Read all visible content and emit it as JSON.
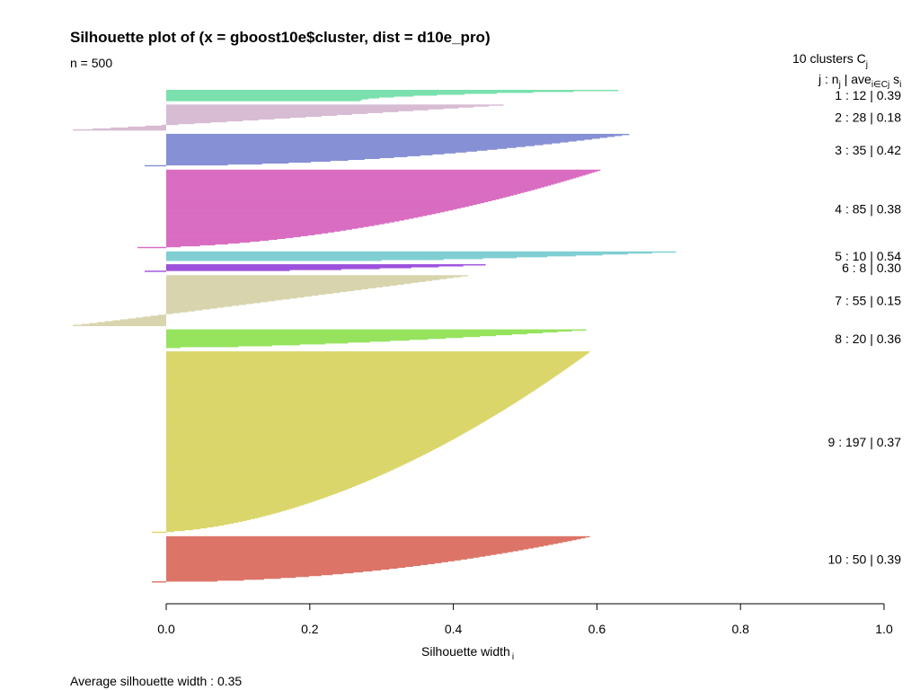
{
  "chart_data": {
    "type": "silhouette",
    "title": "Silhouette plot of (x = gboost10e$cluster, dist = d10e_pro)",
    "subtitle": "n = 500",
    "xlabel": "Silhouette width",
    "xlabel_sub": "i",
    "xlim": [
      0,
      1
    ],
    "x_ticks": [
      0,
      0.2,
      0.4,
      0.6,
      0.8,
      1
    ],
    "x_tick_labels": [
      "0.0",
      "0.2",
      "0.4",
      "0.6",
      "0.8",
      "1.0"
    ],
    "legend_header": {
      "count_label": "10  clusters  C",
      "count_sub": "j",
      "columns_label": "j :  n",
      "columns_n_sub": "j",
      "columns_ave": " | ave",
      "columns_ave_sub": "i∈Cj",
      "columns_s": "  s",
      "columns_s_sub": "i"
    },
    "footer": "Average silhouette width :  0.35",
    "clusters": [
      {
        "j": 1,
        "n": 12,
        "avg": "0.39",
        "max": 0.63,
        "min": 0.27,
        "neg": 0,
        "color": "#7ae0ad"
      },
      {
        "j": 2,
        "n": 28,
        "avg": "0.18",
        "max": 0.47,
        "min": -0.13,
        "neg": 0.13,
        "color": "#d8bcd3"
      },
      {
        "j": 3,
        "n": 35,
        "avg": "0.42",
        "max": 0.645,
        "min": -0.03,
        "neg": 0.03,
        "color": "#8690d4"
      },
      {
        "j": 4,
        "n": 85,
        "avg": "0.38",
        "max": 0.605,
        "min": -0.04,
        "neg": 0.04,
        "color": "#d96dc1"
      },
      {
        "j": 5,
        "n": 10,
        "avg": "0.54",
        "max": 0.71,
        "min": 0.3,
        "neg": 0,
        "color": "#7fcfd3"
      },
      {
        "j": 6,
        "n": 8,
        "avg": "0.30",
        "max": 0.445,
        "min": -0.03,
        "neg": 0.03,
        "color": "#9d50dc"
      },
      {
        "j": 7,
        "n": 55,
        "avg": "0.15",
        "max": 0.42,
        "min": -0.13,
        "neg": 0.13,
        "color": "#d8d5ae"
      },
      {
        "j": 8,
        "n": 20,
        "avg": "0.36",
        "max": 0.585,
        "min": 0.02,
        "neg": 0,
        "color": "#96e35e"
      },
      {
        "j": 9,
        "n": 197,
        "avg": "0.37",
        "max": 0.59,
        "min": -0.02,
        "neg": 0.02,
        "color": "#dad66b"
      },
      {
        "j": 10,
        "n": 50,
        "avg": "0.39",
        "max": 0.59,
        "min": -0.02,
        "neg": 0.02,
        "color": "#dc7468"
      }
    ]
  }
}
